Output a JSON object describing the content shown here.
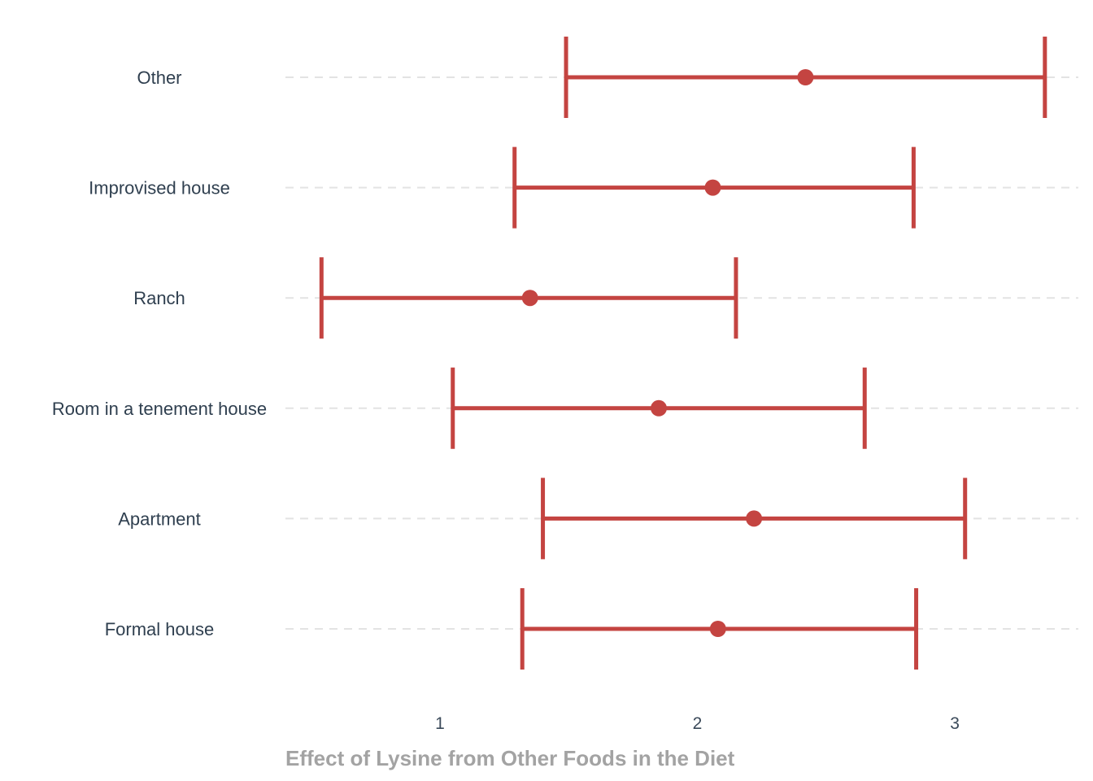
{
  "chart_data": {
    "type": "errorbar",
    "title": "",
    "xlabel": "Effect of Lysine from Other Foods in the Diet",
    "ylabel": "",
    "xlim": [
      0.4,
      3.48
    ],
    "x_ticks": [
      1,
      2,
      3
    ],
    "grid": "horizontal dashed",
    "colors": {
      "marker": "#c44441",
      "grid": "#e3e3e3",
      "labels": "#2f3f4f",
      "xlabel": "#a3a3a3"
    },
    "categories": [
      "Other",
      "Improvised house",
      "Ranch",
      "Room in a tenement house",
      "Apartment",
      "Formal house"
    ],
    "series": [
      {
        "points": [
          {
            "category": "Other",
            "estimate": 2.42,
            "lower": 1.49,
            "upper": 3.35
          },
          {
            "category": "Improvised house",
            "estimate": 2.06,
            "lower": 1.29,
            "upper": 2.84
          },
          {
            "category": "Ranch",
            "estimate": 1.35,
            "lower": 0.54,
            "upper": 2.15
          },
          {
            "category": "Room in a tenement house",
            "estimate": 1.85,
            "lower": 1.05,
            "upper": 2.65
          },
          {
            "category": "Apartment",
            "estimate": 2.22,
            "lower": 1.4,
            "upper": 3.04
          },
          {
            "category": "Formal house",
            "estimate": 2.08,
            "lower": 1.32,
            "upper": 2.85
          }
        ]
      }
    ]
  }
}
